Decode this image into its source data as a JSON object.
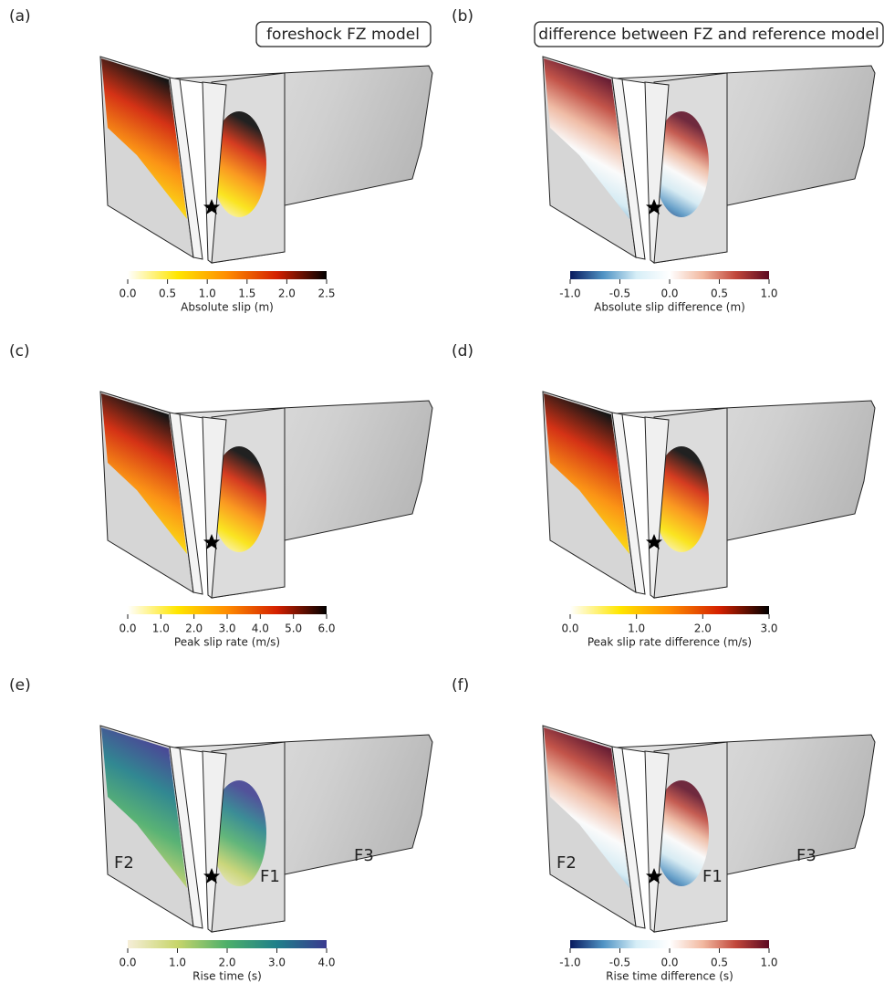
{
  "headers": [
    "foreshock FZ model",
    "difference between FZ and reference model"
  ],
  "panels": [
    {
      "label": "(a)",
      "colors": [
        "#ffffff",
        "#ffe600",
        "#ff8c00",
        "#d42000",
        "#000000"
      ],
      "colorbar": {
        "title": "Absolute slip (m)",
        "ticks": [
          "0.0",
          "0.5",
          "1.0",
          "1.5",
          "2.0",
          "2.5"
        ]
      },
      "fault_labels": []
    },
    {
      "label": "(b)",
      "colors": [
        "#08195e",
        "#4f93c4",
        "#d6eef7",
        "#ffffff",
        "#f2b9a0",
        "#c1463a",
        "#5c0a22"
      ],
      "colorbar": {
        "title": "Absolute slip difference (m)",
        "ticks": [
          "-1.0",
          "-0.5",
          "0.0",
          "0.5",
          "1.0"
        ]
      },
      "fault_labels": []
    },
    {
      "label": "(c)",
      "colors": [
        "#ffffff",
        "#ffe600",
        "#ff8c00",
        "#d42000",
        "#000000"
      ],
      "colorbar": {
        "title": "Peak slip rate (m/s)",
        "ticks": [
          "0.0",
          "1.0",
          "2.0",
          "3.0",
          "4.0",
          "5.0",
          "6.0"
        ]
      },
      "fault_labels": []
    },
    {
      "label": "(d)",
      "colors": [
        "#ffffff",
        "#ffe600",
        "#ff8c00",
        "#d42000",
        "#000000"
      ],
      "colorbar": {
        "title": "Peak slip rate difference (m/s)",
        "ticks": [
          "0.0",
          "1.0",
          "2.0",
          "3.0"
        ]
      },
      "fault_labels": []
    },
    {
      "label": "(e)",
      "colors": [
        "#f6eed8",
        "#c7d56a",
        "#4caf6a",
        "#1f7f8a",
        "#3a3a8f"
      ],
      "colorbar": {
        "title": "Rise time (s)",
        "ticks": [
          "0.0",
          "1.0",
          "2.0",
          "3.0",
          "4.0"
        ]
      },
      "fault_labels": [
        "F2",
        "F1",
        "F3"
      ]
    },
    {
      "label": "(f)",
      "colors": [
        "#08195e",
        "#4f93c4",
        "#d6eef7",
        "#ffffff",
        "#f2b9a0",
        "#c1463a",
        "#5c0a22"
      ],
      "colorbar": {
        "title": "Rise time difference (s)",
        "ticks": [
          "-1.0",
          "-0.5",
          "0.0",
          "0.5",
          "1.0"
        ]
      },
      "fault_labels": [
        "F2",
        "F1",
        "F3"
      ]
    }
  ]
}
